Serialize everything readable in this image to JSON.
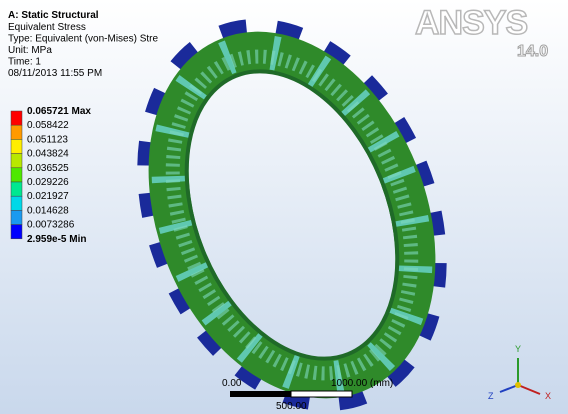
{
  "header": {
    "title": "A: Static Structural",
    "lines": [
      "Equivalent Stress",
      "Type: Equivalent (von-Mises) Stre",
      "Unit: MPa",
      "Time: 1",
      "08/11/2013 11:55 PM"
    ]
  },
  "legend": {
    "labels": [
      "0.065721 Max",
      "0.058422",
      "0.051123",
      "0.043824",
      "0.036525",
      "0.029226",
      "0.021927",
      "0.014628",
      "0.0073286",
      "2.959e-5 Min"
    ]
  },
  "logo": {
    "name": "ANSYS",
    "version": "14.0"
  },
  "scale_bar": {
    "start": "0.00",
    "end": "1000.00 (mm)",
    "middle": "500.00"
  },
  "triad": {
    "x": "X",
    "y": "Y",
    "z": "Z"
  }
}
